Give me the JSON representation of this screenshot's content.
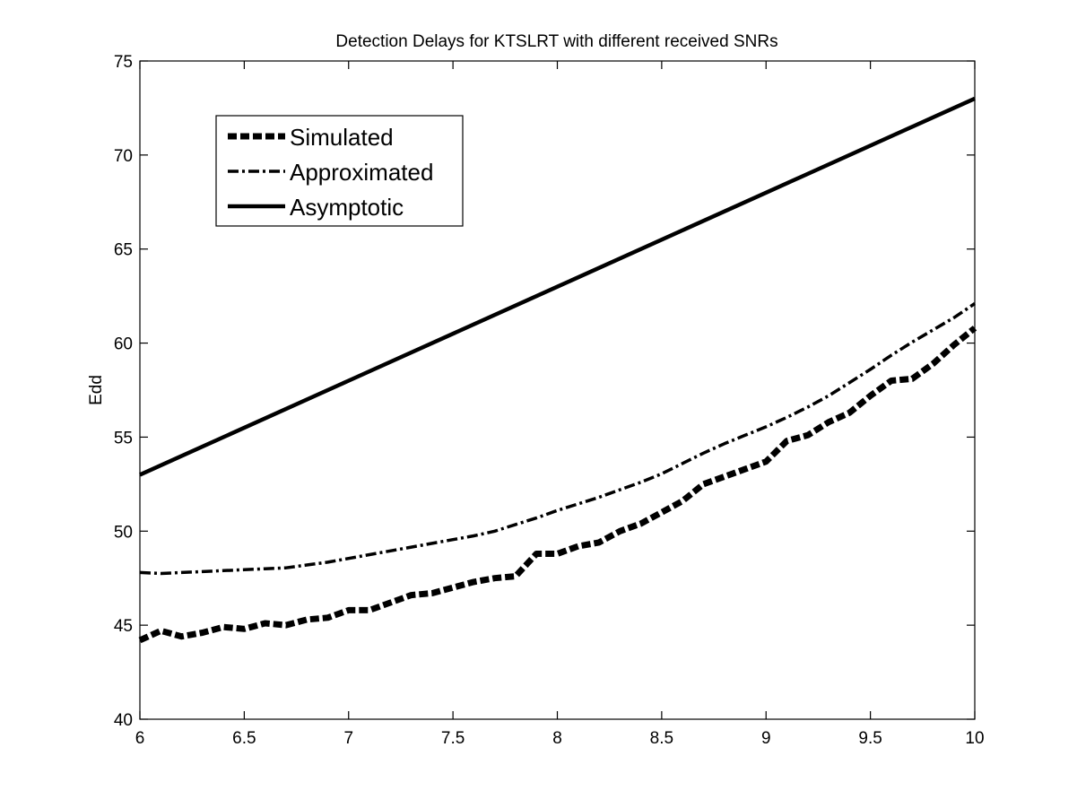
{
  "chart_data": {
    "type": "line",
    "title": "Detection Delays for KTSLRT with different received SNRs",
    "xlabel": "",
    "ylabel": "Edd",
    "xlim": [
      6,
      10
    ],
    "ylim": [
      40,
      75
    ],
    "xticks": [
      6,
      6.5,
      7,
      7.5,
      8,
      8.5,
      9,
      9.5,
      10
    ],
    "xtick_labels": [
      "6",
      "6.5",
      "7",
      "7.5",
      "8",
      "8.5",
      "9",
      "9.5",
      "10"
    ],
    "yticks": [
      40,
      45,
      50,
      55,
      60,
      65,
      70,
      75
    ],
    "ytick_labels": [
      "40",
      "45",
      "50",
      "55",
      "60",
      "65",
      "70",
      "75"
    ],
    "grid": false,
    "legend_position": "top-left",
    "series": [
      {
        "name": "Simulated",
        "style": "dashed-thick",
        "x": [
          6.0,
          6.1,
          6.2,
          6.3,
          6.4,
          6.5,
          6.6,
          6.7,
          6.8,
          6.9,
          7.0,
          7.1,
          7.2,
          7.3,
          7.4,
          7.5,
          7.6,
          7.7,
          7.8,
          7.9,
          8.0,
          8.1,
          8.2,
          8.3,
          8.4,
          8.5,
          8.6,
          8.7,
          8.8,
          8.9,
          9.0,
          9.1,
          9.2,
          9.3,
          9.4,
          9.5,
          9.6,
          9.7,
          9.8,
          9.9,
          10.0
        ],
        "values": [
          44.2,
          44.7,
          44.4,
          44.6,
          44.9,
          44.8,
          45.1,
          45.0,
          45.3,
          45.4,
          45.8,
          45.8,
          46.2,
          46.6,
          46.7,
          47.0,
          47.3,
          47.5,
          47.6,
          48.8,
          48.8,
          49.2,
          49.4,
          50.0,
          50.4,
          51.0,
          51.6,
          52.5,
          52.9,
          53.3,
          53.7,
          54.8,
          55.1,
          55.8,
          56.3,
          57.2,
          58.0,
          58.1,
          58.9,
          59.9,
          60.8
        ]
      },
      {
        "name": "Approximated",
        "style": "dash-dot",
        "x": [
          6.0,
          6.1,
          6.2,
          6.3,
          6.4,
          6.5,
          6.6,
          6.7,
          6.8,
          6.9,
          7.0,
          7.1,
          7.2,
          7.3,
          7.4,
          7.5,
          7.6,
          7.7,
          7.8,
          7.9,
          8.0,
          8.1,
          8.2,
          8.3,
          8.4,
          8.5,
          8.6,
          8.7,
          8.8,
          8.9,
          9.0,
          9.1,
          9.2,
          9.3,
          9.4,
          9.5,
          9.6,
          9.7,
          9.8,
          9.9,
          10.0
        ],
        "values": [
          47.8,
          47.75,
          47.8,
          47.85,
          47.9,
          47.95,
          48.0,
          48.05,
          48.2,
          48.35,
          48.55,
          48.75,
          48.95,
          49.15,
          49.35,
          49.55,
          49.75,
          50.0,
          50.35,
          50.7,
          51.1,
          51.45,
          51.8,
          52.2,
          52.6,
          53.05,
          53.6,
          54.15,
          54.65,
          55.1,
          55.55,
          56.05,
          56.6,
          57.2,
          57.9,
          58.6,
          59.35,
          60.05,
          60.7,
          61.35,
          62.1
        ]
      },
      {
        "name": "Asymptotic",
        "style": "solid",
        "x": [
          6.0,
          7.0,
          8.0,
          9.0,
          10.0
        ],
        "values": [
          53.0,
          58.0,
          63.0,
          68.0,
          73.0
        ]
      }
    ]
  }
}
